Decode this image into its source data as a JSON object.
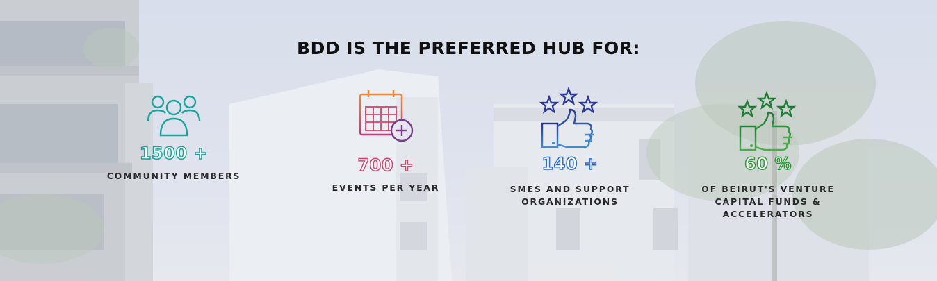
{
  "headline": "BDD IS THE PREFERRED HUB FOR:",
  "stats": [
    {
      "value": "1500 +",
      "label": "COMMUNITY MEMBERS",
      "icon": "community-members-icon",
      "color": "#1aa39a"
    },
    {
      "value": "700 +",
      "label": "EVENTS PER YEAR",
      "icon": "calendar-add-icon",
      "color": "#d9436b"
    },
    {
      "value": "140 +",
      "label_lines": [
        "SMES AND SUPPORT",
        "ORGANIZATIONS"
      ],
      "icon": "thumbs-up-stars-icon",
      "color": "#2e6fd0"
    },
    {
      "value": "60 %",
      "label_lines": [
        "OF BEIRUT'S VENTURE",
        "CAPITAL FUNDS &",
        "ACCELERATORS"
      ],
      "icon": "thumbs-up-stars-icon",
      "color": "#2f9a3a"
    }
  ],
  "colors": {
    "teal": "#1aa39a",
    "pink": "#d9436b",
    "purple": "#7a3d8f",
    "blue": "#2e6fd0",
    "green": "#2f9a3a"
  }
}
